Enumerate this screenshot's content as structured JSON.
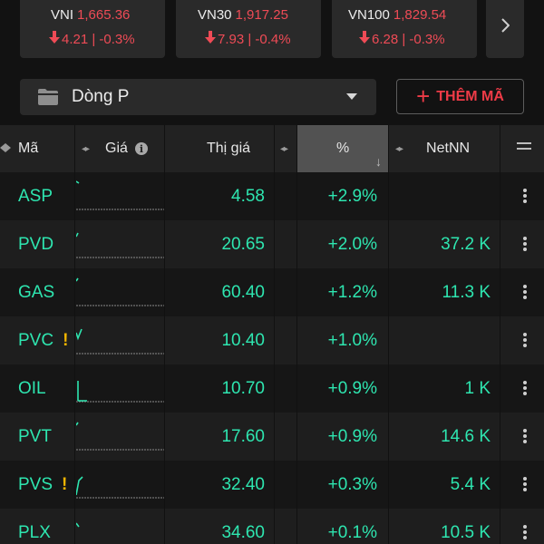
{
  "indices": [
    {
      "name": "VNI",
      "points": "1,665.36",
      "change": "4.21 | -0.3%"
    },
    {
      "name": "VN30",
      "points": "1,917.25",
      "change": "7.93 | -0.4%"
    },
    {
      "name": "VN100",
      "points": "1,829.54",
      "change": "6.28 | -0.3%"
    }
  ],
  "toolbar": {
    "group": "Dòng P",
    "add_label": "THÊM MÃ"
  },
  "table": {
    "headers": {
      "symbol": "Mã",
      "price": "Giá",
      "market_price": "Thị giá",
      "percent": "%",
      "netnn": "NetNN"
    },
    "rows": [
      {
        "symbol": "ASP",
        "warn": "",
        "price": "4.58",
        "pct": "+2.9%",
        "netnn": ""
      },
      {
        "symbol": "PVD",
        "warn": "",
        "price": "20.65",
        "pct": "+2.0%",
        "netnn": "37.2 K"
      },
      {
        "symbol": "GAS",
        "warn": "",
        "price": "60.40",
        "pct": "+1.2%",
        "netnn": "11.3 K"
      },
      {
        "symbol": "PVC",
        "warn": "!",
        "price": "10.40",
        "pct": "+1.0%",
        "netnn": ""
      },
      {
        "symbol": "OIL",
        "warn": "",
        "price": "10.70",
        "pct": "+0.9%",
        "netnn": "1 K"
      },
      {
        "symbol": "PVT",
        "warn": "",
        "price": "17.60",
        "pct": "+0.9%",
        "netnn": "14.6 K"
      },
      {
        "symbol": "PVS",
        "warn": "!",
        "price": "32.40",
        "pct": "+0.3%",
        "netnn": "5.4 K"
      },
      {
        "symbol": "PLX",
        "warn": "",
        "price": "34.60",
        "pct": "+0.1%",
        "netnn": "10.5 K"
      }
    ]
  },
  "colors": {
    "up": "#2ee6b0",
    "down": "#ef4b56",
    "warning": "#f0b400",
    "accent": "#ef3b47"
  },
  "icons": {
    "down_arrow": "arrow-down-icon",
    "next": "chevron-right-icon",
    "folder": "folder-icon",
    "dropdown": "caret-down-icon",
    "info": "info-icon",
    "row_menu": "more-vertical-icon"
  }
}
